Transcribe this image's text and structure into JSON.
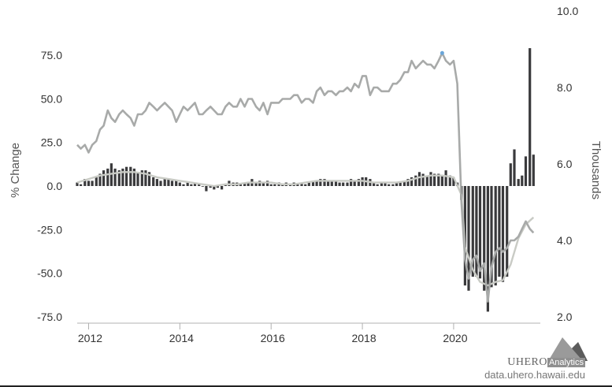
{
  "chart_data": {
    "type": "bar+line",
    "title": "",
    "y_left": {
      "label": "% Change",
      "min": -75,
      "max": 75,
      "ticks": [
        "75.0",
        "50.0",
        "25.0",
        "0.0",
        "-25.0",
        "-50.0",
        "-75.0"
      ],
      "tick_values": [
        75,
        50,
        25,
        0,
        -25,
        -50,
        -75
      ]
    },
    "y_right": {
      "label": "Thousands",
      "min": 2,
      "max": 10,
      "ticks": [
        "10.0",
        "8.0",
        "6.0",
        "4.0",
        "2.0"
      ],
      "tick_values": [
        10,
        8,
        6,
        4,
        2
      ]
    },
    "x_axis": {
      "start_year": 2011.75,
      "end_year": 2021.9,
      "ticks": [
        "2012",
        "2014",
        "2016",
        "2018",
        "2020"
      ],
      "tick_values": [
        2012,
        2014,
        2016,
        2018,
        2020
      ]
    },
    "grid": false,
    "series": [
      {
        "kind": "bar",
        "axis": "left",
        "color": "#3a3a3c",
        "points": [
          [
            2011.75,
            2
          ],
          [
            2011.83,
            1
          ],
          [
            2011.92,
            4
          ],
          [
            2012.0,
            3
          ],
          [
            2012.08,
            3
          ],
          [
            2012.17,
            5
          ],
          [
            2012.25,
            7
          ],
          [
            2012.33,
            9
          ],
          [
            2012.42,
            10
          ],
          [
            2012.5,
            13
          ],
          [
            2012.58,
            10
          ],
          [
            2012.67,
            9
          ],
          [
            2012.75,
            10
          ],
          [
            2012.83,
            11
          ],
          [
            2012.92,
            11
          ],
          [
            2013.0,
            10
          ],
          [
            2013.08,
            8
          ],
          [
            2013.17,
            9
          ],
          [
            2013.25,
            9
          ],
          [
            2013.33,
            8
          ],
          [
            2013.42,
            5
          ],
          [
            2013.5,
            4
          ],
          [
            2013.58,
            3
          ],
          [
            2013.67,
            4
          ],
          [
            2013.75,
            4
          ],
          [
            2013.83,
            3
          ],
          [
            2013.92,
            3
          ],
          [
            2014.0,
            2
          ],
          [
            2014.08,
            1
          ],
          [
            2014.17,
            2
          ],
          [
            2014.25,
            1
          ],
          [
            2014.33,
            2
          ],
          [
            2014.42,
            1
          ],
          [
            2014.5,
            0
          ],
          [
            2014.58,
            -3
          ],
          [
            2014.67,
            -1
          ],
          [
            2014.75,
            -2
          ],
          [
            2014.83,
            -1
          ],
          [
            2014.92,
            -2
          ],
          [
            2015.0,
            1
          ],
          [
            2015.08,
            3
          ],
          [
            2015.17,
            2
          ],
          [
            2015.25,
            2
          ],
          [
            2015.33,
            1
          ],
          [
            2015.42,
            2
          ],
          [
            2015.5,
            2
          ],
          [
            2015.58,
            4
          ],
          [
            2015.67,
            2
          ],
          [
            2015.75,
            3
          ],
          [
            2015.83,
            2
          ],
          [
            2015.92,
            3
          ],
          [
            2016.0,
            1
          ],
          [
            2016.08,
            1
          ],
          [
            2016.17,
            2
          ],
          [
            2016.25,
            1
          ],
          [
            2016.33,
            2
          ],
          [
            2016.42,
            1
          ],
          [
            2016.5,
            2
          ],
          [
            2016.58,
            1
          ],
          [
            2016.67,
            2
          ],
          [
            2016.75,
            1
          ],
          [
            2016.83,
            2
          ],
          [
            2016.92,
            3
          ],
          [
            2017.0,
            3
          ],
          [
            2017.08,
            4
          ],
          [
            2017.17,
            4
          ],
          [
            2017.25,
            3
          ],
          [
            2017.33,
            3
          ],
          [
            2017.42,
            3
          ],
          [
            2017.5,
            2
          ],
          [
            2017.58,
            2
          ],
          [
            2017.67,
            2
          ],
          [
            2017.75,
            4
          ],
          [
            2017.83,
            3
          ],
          [
            2017.92,
            4
          ],
          [
            2018.0,
            5
          ],
          [
            2018.08,
            5
          ],
          [
            2018.17,
            4
          ],
          [
            2018.25,
            2
          ],
          [
            2018.33,
            1
          ],
          [
            2018.42,
            2
          ],
          [
            2018.5,
            2
          ],
          [
            2018.58,
            1
          ],
          [
            2018.67,
            1
          ],
          [
            2018.75,
            2
          ],
          [
            2018.83,
            2
          ],
          [
            2018.92,
            3
          ],
          [
            2019.0,
            4
          ],
          [
            2019.08,
            5
          ],
          [
            2019.17,
            6
          ],
          [
            2019.25,
            8
          ],
          [
            2019.33,
            7
          ],
          [
            2019.42,
            6
          ],
          [
            2019.5,
            8
          ],
          [
            2019.58,
            7
          ],
          [
            2019.67,
            7
          ],
          [
            2019.75,
            6
          ],
          [
            2019.83,
            9
          ],
          [
            2019.92,
            6
          ],
          [
            2020.0,
            5
          ],
          [
            2020.08,
            2
          ],
          [
            2020.17,
            -8
          ],
          [
            2020.25,
            -57
          ],
          [
            2020.33,
            -60
          ],
          [
            2020.42,
            -52
          ],
          [
            2020.5,
            -52
          ],
          [
            2020.58,
            -53
          ],
          [
            2020.67,
            -60
          ],
          [
            2020.75,
            -72
          ],
          [
            2020.83,
            -58
          ],
          [
            2020.92,
            -57
          ],
          [
            2021.0,
            -52
          ],
          [
            2021.08,
            -55
          ],
          [
            2021.17,
            -52
          ],
          [
            2021.25,
            13
          ],
          [
            2021.33,
            21
          ],
          [
            2021.42,
            4
          ],
          [
            2021.5,
            6
          ],
          [
            2021.58,
            17
          ],
          [
            2021.67,
            79
          ],
          [
            2021.75,
            18
          ]
        ]
      },
      {
        "kind": "line",
        "axis": "left",
        "color": "#c9cbc5",
        "points": [
          [
            2011.75,
            2
          ],
          [
            2012.0,
            4
          ],
          [
            2012.25,
            6
          ],
          [
            2012.5,
            7
          ],
          [
            2012.75,
            8
          ],
          [
            2013.0,
            8
          ],
          [
            2013.25,
            7
          ],
          [
            2013.5,
            5
          ],
          [
            2013.75,
            4
          ],
          [
            2014.0,
            3
          ],
          [
            2014.25,
            2
          ],
          [
            2014.5,
            1
          ],
          [
            2014.75,
            0
          ],
          [
            2015.0,
            1
          ],
          [
            2015.25,
            1
          ],
          [
            2015.5,
            2
          ],
          [
            2015.75,
            2
          ],
          [
            2016.0,
            2
          ],
          [
            2016.25,
            1
          ],
          [
            2016.5,
            1
          ],
          [
            2016.75,
            2
          ],
          [
            2017.0,
            3
          ],
          [
            2017.25,
            3
          ],
          [
            2017.5,
            3
          ],
          [
            2017.75,
            3
          ],
          [
            2018.0,
            3
          ],
          [
            2018.25,
            2
          ],
          [
            2018.5,
            2
          ],
          [
            2018.75,
            2
          ],
          [
            2019.0,
            3
          ],
          [
            2019.25,
            5
          ],
          [
            2019.5,
            6
          ],
          [
            2019.75,
            6
          ],
          [
            2020.0,
            5
          ],
          [
            2020.17,
            -5
          ],
          [
            2020.25,
            -35
          ],
          [
            2020.42,
            -48
          ],
          [
            2020.58,
            -55
          ],
          [
            2020.75,
            -57
          ],
          [
            2020.92,
            -55
          ],
          [
            2021.08,
            -54
          ],
          [
            2021.25,
            -45
          ],
          [
            2021.42,
            -30
          ],
          [
            2021.58,
            -22
          ],
          [
            2021.75,
            -18
          ]
        ]
      },
      {
        "kind": "line",
        "axis": "right",
        "color": "#a8aaa9",
        "highlight_color": "#6aa5d8",
        "points": [
          [
            2011.75,
            6.5
          ],
          [
            2011.83,
            6.4
          ],
          [
            2011.92,
            6.5
          ],
          [
            2012.0,
            6.3
          ],
          [
            2012.08,
            6.5
          ],
          [
            2012.17,
            6.6
          ],
          [
            2012.25,
            6.9
          ],
          [
            2012.33,
            7.0
          ],
          [
            2012.42,
            7.4
          ],
          [
            2012.5,
            7.2
          ],
          [
            2012.58,
            7.1
          ],
          [
            2012.67,
            7.3
          ],
          [
            2012.75,
            7.4
          ],
          [
            2012.83,
            7.3
          ],
          [
            2012.92,
            7.2
          ],
          [
            2013.0,
            7.0
          ],
          [
            2013.08,
            7.3
          ],
          [
            2013.17,
            7.3
          ],
          [
            2013.25,
            7.4
          ],
          [
            2013.33,
            7.6
          ],
          [
            2013.42,
            7.5
          ],
          [
            2013.5,
            7.4
          ],
          [
            2013.58,
            7.5
          ],
          [
            2013.67,
            7.6
          ],
          [
            2013.75,
            7.5
          ],
          [
            2013.83,
            7.4
          ],
          [
            2013.92,
            7.1
          ],
          [
            2014.0,
            7.3
          ],
          [
            2014.08,
            7.5
          ],
          [
            2014.17,
            7.4
          ],
          [
            2014.25,
            7.5
          ],
          [
            2014.33,
            7.6
          ],
          [
            2014.42,
            7.3
          ],
          [
            2014.5,
            7.3
          ],
          [
            2014.58,
            7.4
          ],
          [
            2014.67,
            7.5
          ],
          [
            2014.75,
            7.4
          ],
          [
            2014.83,
            7.3
          ],
          [
            2014.92,
            7.3
          ],
          [
            2015.0,
            7.5
          ],
          [
            2015.08,
            7.6
          ],
          [
            2015.17,
            7.5
          ],
          [
            2015.25,
            7.5
          ],
          [
            2015.33,
            7.7
          ],
          [
            2015.42,
            7.5
          ],
          [
            2015.5,
            7.7
          ],
          [
            2015.58,
            7.7
          ],
          [
            2015.67,
            7.5
          ],
          [
            2015.75,
            7.4
          ],
          [
            2015.83,
            7.6
          ],
          [
            2015.92,
            7.3
          ],
          [
            2016.0,
            7.6
          ],
          [
            2016.08,
            7.6
          ],
          [
            2016.17,
            7.6
          ],
          [
            2016.25,
            7.7
          ],
          [
            2016.33,
            7.7
          ],
          [
            2016.42,
            7.7
          ],
          [
            2016.5,
            7.8
          ],
          [
            2016.58,
            7.8
          ],
          [
            2016.67,
            7.6
          ],
          [
            2016.75,
            7.7
          ],
          [
            2016.83,
            7.7
          ],
          [
            2016.92,
            7.6
          ],
          [
            2017.0,
            7.9
          ],
          [
            2017.08,
            8.0
          ],
          [
            2017.17,
            7.8
          ],
          [
            2017.25,
            7.9
          ],
          [
            2017.33,
            7.9
          ],
          [
            2017.42,
            7.8
          ],
          [
            2017.5,
            7.9
          ],
          [
            2017.58,
            7.9
          ],
          [
            2017.67,
            8.0
          ],
          [
            2017.75,
            7.9
          ],
          [
            2017.83,
            8.1
          ],
          [
            2017.92,
            8.0
          ],
          [
            2018.0,
            8.3
          ],
          [
            2018.08,
            8.3
          ],
          [
            2018.17,
            7.8
          ],
          [
            2018.25,
            8.0
          ],
          [
            2018.33,
            8.0
          ],
          [
            2018.42,
            7.9
          ],
          [
            2018.5,
            7.9
          ],
          [
            2018.58,
            7.9
          ],
          [
            2018.67,
            8.1
          ],
          [
            2018.75,
            8.1
          ],
          [
            2018.83,
            8.2
          ],
          [
            2018.92,
            8.4
          ],
          [
            2019.0,
            8.4
          ],
          [
            2019.08,
            8.7
          ],
          [
            2019.17,
            8.5
          ],
          [
            2019.25,
            8.6
          ],
          [
            2019.33,
            8.7
          ],
          [
            2019.42,
            8.6
          ],
          [
            2019.5,
            8.6
          ],
          [
            2019.58,
            8.5
          ],
          [
            2019.67,
            8.7
          ],
          [
            2019.75,
            8.9
          ],
          [
            2019.83,
            8.7
          ],
          [
            2019.92,
            8.6
          ],
          [
            2020.0,
            8.7
          ],
          [
            2020.08,
            8.1
          ],
          [
            2020.17,
            5.0
          ],
          [
            2020.25,
            3.5
          ],
          [
            2020.33,
            3.0
          ],
          [
            2020.42,
            3.5
          ],
          [
            2020.5,
            3.6
          ],
          [
            2020.58,
            3.2
          ],
          [
            2020.67,
            3.4
          ],
          [
            2020.75,
            2.4
          ],
          [
            2020.83,
            3.3
          ],
          [
            2020.92,
            3.7
          ],
          [
            2021.0,
            3.8
          ],
          [
            2021.08,
            3.7
          ],
          [
            2021.17,
            3.8
          ],
          [
            2021.25,
            4.0
          ],
          [
            2021.33,
            4.0
          ],
          [
            2021.42,
            4.1
          ],
          [
            2021.5,
            4.3
          ],
          [
            2021.58,
            4.5
          ],
          [
            2021.67,
            4.3
          ],
          [
            2021.75,
            4.2
          ]
        ]
      }
    ]
  },
  "credits": {
    "brand": "UHERO",
    "brand_sub": "Analytics",
    "url": "data.uhero.hawaii.edu"
  }
}
